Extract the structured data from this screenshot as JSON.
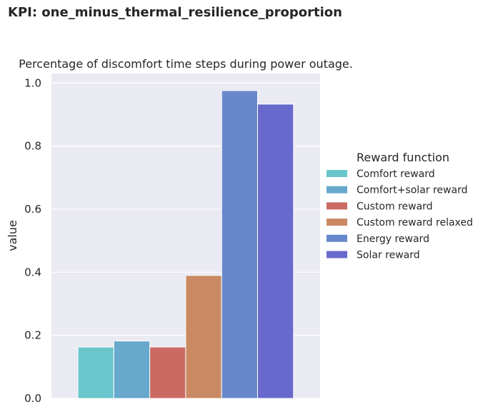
{
  "figure": {
    "suptitle": "KPI: one_minus_thermal_resilience_proportion"
  },
  "chart_data": {
    "type": "bar",
    "title": "Percentage of discomfort time steps during power outage.",
    "xlabel": "",
    "ylabel": "value",
    "ylim": [
      0,
      1.03
    ],
    "yticks": [
      "0.0",
      "0.2",
      "0.4",
      "0.6",
      "0.8",
      "1.0"
    ],
    "grid": true,
    "legend_title": "Reward function",
    "legend_position": "right",
    "series": [
      {
        "name": "Comfort reward",
        "value": 0.163,
        "color": "#6bc6cc"
      },
      {
        "name": "Comfort+solar reward",
        "value": 0.182,
        "color": "#67a8cc"
      },
      {
        "name": "Custom reward",
        "value": 0.163,
        "color": "#c96b63"
      },
      {
        "name": "Custom reward relaxed",
        "value": 0.39,
        "color": "#c98a63"
      },
      {
        "name": "Energy reward",
        "value": 0.976,
        "color": "#6888cc"
      },
      {
        "name": "Solar reward",
        "value": 0.933,
        "color": "#6869cc"
      }
    ]
  }
}
